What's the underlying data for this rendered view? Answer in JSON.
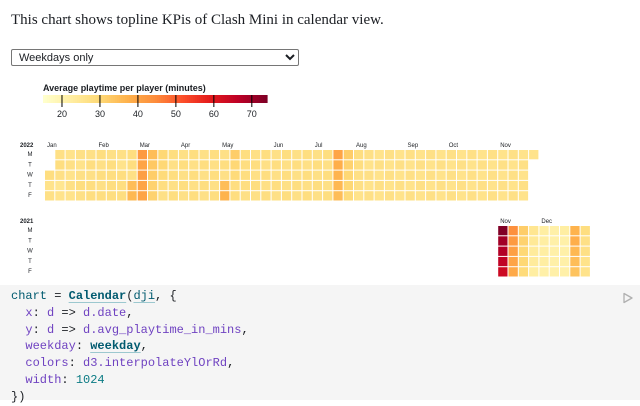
{
  "intro": "This chart shows topline KPis of Clash Mini in calendar view.",
  "select": {
    "value": "Weekdays only",
    "options": [
      "Weekdays only"
    ]
  },
  "colors": {
    "scheme": "interpolateYlOrRd",
    "gap": "#ffffff",
    "code_bg": "#f5f5f5",
    "text": "#1b1e23"
  },
  "legend": {
    "title": "Average playtime per player (minutes)",
    "domain": [
      15,
      74
    ],
    "ticks": [
      20,
      30,
      40,
      50,
      60,
      70
    ]
  },
  "chart_data": {
    "type": "heatmap",
    "title": "Average playtime per player (minutes)",
    "weekday_labels": [
      "M",
      "T",
      "W",
      "T",
      "F"
    ],
    "years": [
      {
        "year": "2022",
        "months": [
          {
            "label": "Jan",
            "week": 0
          },
          {
            "label": "Feb",
            "week": 5
          },
          {
            "label": "Mar",
            "week": 9
          },
          {
            "label": "Apr",
            "week": 13
          },
          {
            "label": "May",
            "week": 17
          },
          {
            "label": "Jun",
            "week": 22
          },
          {
            "label": "Jul",
            "week": 26
          },
          {
            "label": "Aug",
            "week": 30
          },
          {
            "label": "Sep",
            "week": 35
          },
          {
            "label": "Oct",
            "week": 39
          },
          {
            "label": "Nov",
            "week": 44
          }
        ],
        "weeks": [
          [
            null,
            null,
            28,
            26,
            27
          ],
          [
            27,
            28,
            27,
            25,
            26
          ],
          [
            26,
            27,
            26,
            27,
            26
          ],
          [
            27,
            26,
            27,
            28,
            27
          ],
          [
            27,
            28,
            27,
            28,
            28
          ],
          [
            28,
            27,
            28,
            27,
            28
          ],
          [
            27,
            28,
            28,
            28,
            28
          ],
          [
            27,
            26,
            28,
            28,
            28
          ],
          [
            28,
            28,
            27,
            35,
            36
          ],
          [
            42,
            40,
            41,
            40,
            40
          ],
          [
            35,
            33,
            32,
            31,
            31
          ],
          [
            30,
            30,
            29,
            28,
            27
          ],
          [
            28,
            27,
            28,
            27,
            28
          ],
          [
            27,
            28,
            27,
            28,
            27
          ],
          [
            28,
            27,
            28,
            27,
            28
          ],
          [
            27,
            28,
            27,
            28,
            27
          ],
          [
            28,
            27,
            28,
            27,
            28
          ],
          [
            27,
            28,
            27,
            35,
            37
          ],
          [
            32,
            30,
            29,
            28,
            28
          ],
          [
            28,
            28,
            28,
            28,
            27
          ],
          [
            27,
            28,
            27,
            28,
            27
          ],
          [
            28,
            27,
            28,
            27,
            28
          ],
          [
            27,
            28,
            27,
            28,
            27
          ],
          [
            28,
            27,
            28,
            27,
            28
          ],
          [
            27,
            28,
            27,
            28,
            27
          ],
          [
            28,
            27,
            28,
            27,
            28
          ],
          [
            27,
            28,
            27,
            28,
            27
          ],
          [
            28,
            27,
            28,
            27,
            28
          ],
          [
            40,
            38,
            37,
            36,
            35
          ],
          [
            32,
            31,
            30,
            30,
            29
          ],
          [
            28,
            28,
            27,
            27,
            26
          ],
          [
            27,
            26,
            27,
            26,
            27
          ],
          [
            26,
            27,
            26,
            27,
            26
          ],
          [
            27,
            26,
            27,
            26,
            27
          ],
          [
            26,
            27,
            26,
            27,
            26
          ],
          [
            27,
            26,
            27,
            26,
            27
          ],
          [
            26,
            27,
            26,
            27,
            26
          ],
          [
            27,
            26,
            27,
            26,
            27
          ],
          [
            26,
            27,
            26,
            27,
            26
          ],
          [
            27,
            26,
            27,
            26,
            27
          ],
          [
            26,
            27,
            26,
            27,
            26
          ],
          [
            27,
            26,
            27,
            26,
            27
          ],
          [
            26,
            27,
            26,
            27,
            26
          ],
          [
            27,
            26,
            27,
            26,
            27
          ],
          [
            26,
            27,
            26,
            27,
            26
          ],
          [
            27,
            26,
            27,
            26,
            27
          ],
          [
            26,
            27,
            26,
            27,
            26
          ],
          [
            26,
            null,
            null,
            null,
            null
          ]
        ]
      },
      {
        "year": "2021",
        "months": [
          {
            "label": "Nov",
            "week": 44
          },
          {
            "label": "Dec",
            "week": 48
          }
        ],
        "weeks": [
          [
            null,
            null,
            null,
            null,
            null
          ],
          [
            null,
            null,
            null,
            null,
            null
          ],
          [
            null,
            null,
            null,
            null,
            null
          ],
          [
            null,
            null,
            null,
            null,
            null
          ],
          [
            null,
            null,
            null,
            null,
            null
          ],
          [
            null,
            null,
            null,
            null,
            null
          ],
          [
            null,
            null,
            null,
            null,
            null
          ],
          [
            null,
            null,
            null,
            null,
            null
          ],
          [
            null,
            null,
            null,
            null,
            null
          ],
          [
            null,
            null,
            null,
            null,
            null
          ],
          [
            null,
            null,
            null,
            null,
            null
          ],
          [
            null,
            null,
            null,
            null,
            null
          ],
          [
            null,
            null,
            null,
            null,
            null
          ],
          [
            null,
            null,
            null,
            null,
            null
          ],
          [
            null,
            null,
            null,
            null,
            null
          ],
          [
            null,
            null,
            null,
            null,
            null
          ],
          [
            null,
            null,
            null,
            null,
            null
          ],
          [
            null,
            null,
            null,
            null,
            null
          ],
          [
            null,
            null,
            null,
            null,
            null
          ],
          [
            null,
            null,
            null,
            null,
            null
          ],
          [
            null,
            null,
            null,
            null,
            null
          ],
          [
            null,
            null,
            null,
            null,
            null
          ],
          [
            null,
            null,
            null,
            null,
            null
          ],
          [
            null,
            null,
            null,
            null,
            null
          ],
          [
            null,
            null,
            null,
            null,
            null
          ],
          [
            null,
            null,
            null,
            null,
            null
          ],
          [
            null,
            null,
            null,
            null,
            null
          ],
          [
            null,
            null,
            null,
            null,
            null
          ],
          [
            null,
            null,
            null,
            null,
            null
          ],
          [
            null,
            null,
            null,
            null,
            null
          ],
          [
            null,
            null,
            null,
            null,
            null
          ],
          [
            null,
            null,
            null,
            null,
            null
          ],
          [
            null,
            null,
            null,
            null,
            null
          ],
          [
            null,
            null,
            null,
            null,
            null
          ],
          [
            null,
            null,
            null,
            null,
            null
          ],
          [
            null,
            null,
            null,
            null,
            null
          ],
          [
            null,
            null,
            null,
            null,
            null
          ],
          [
            null,
            null,
            null,
            null,
            null
          ],
          [
            null,
            null,
            null,
            null,
            null
          ],
          [
            null,
            null,
            null,
            null,
            null
          ],
          [
            null,
            null,
            null,
            null,
            null
          ],
          [
            null,
            null,
            null,
            null,
            null
          ],
          [
            null,
            null,
            null,
            null,
            null
          ],
          [
            null,
            null,
            null,
            null,
            null
          ],
          [
            74,
            70,
            68,
            66,
            64
          ],
          [
            44,
            42,
            41,
            40,
            39
          ],
          [
            32,
            31,
            30,
            30,
            29
          ],
          [
            25,
            24,
            23,
            23,
            22
          ],
          [
            22,
            22,
            22,
            22,
            21
          ],
          [
            21,
            21,
            21,
            21,
            21
          ],
          [
            22,
            21,
            21,
            21,
            21
          ],
          [
            37,
            38,
            36,
            35,
            34
          ],
          [
            28,
            27,
            27,
            26,
            26
          ]
        ]
      }
    ]
  },
  "code": {
    "l1": {
      "var": "chart",
      "eq": " = ",
      "fn": "Calendar",
      "open": "(",
      "arg": "dji",
      "rest": ", {"
    },
    "l2": {
      "key": "x",
      "colon": ": ",
      "param": "d",
      "arrow": " => ",
      "value": "d.date",
      "end": ","
    },
    "l3": {
      "key": "y",
      "colon": ": ",
      "param": "d",
      "arrow": " => ",
      "value": "d.avg_playtime_in_mins",
      "end": ","
    },
    "l4": {
      "key": "weekday",
      "colon": ": ",
      "value": "weekday",
      "end": ","
    },
    "l5": {
      "key": "colors",
      "colon": ": ",
      "value": "d3.interpolateYlOrRd",
      "end": ","
    },
    "l6": {
      "key": "width",
      "colon": ": ",
      "value": "1024"
    },
    "l7": {
      "close": "})"
    }
  },
  "run_icon": "run-cell-icon"
}
